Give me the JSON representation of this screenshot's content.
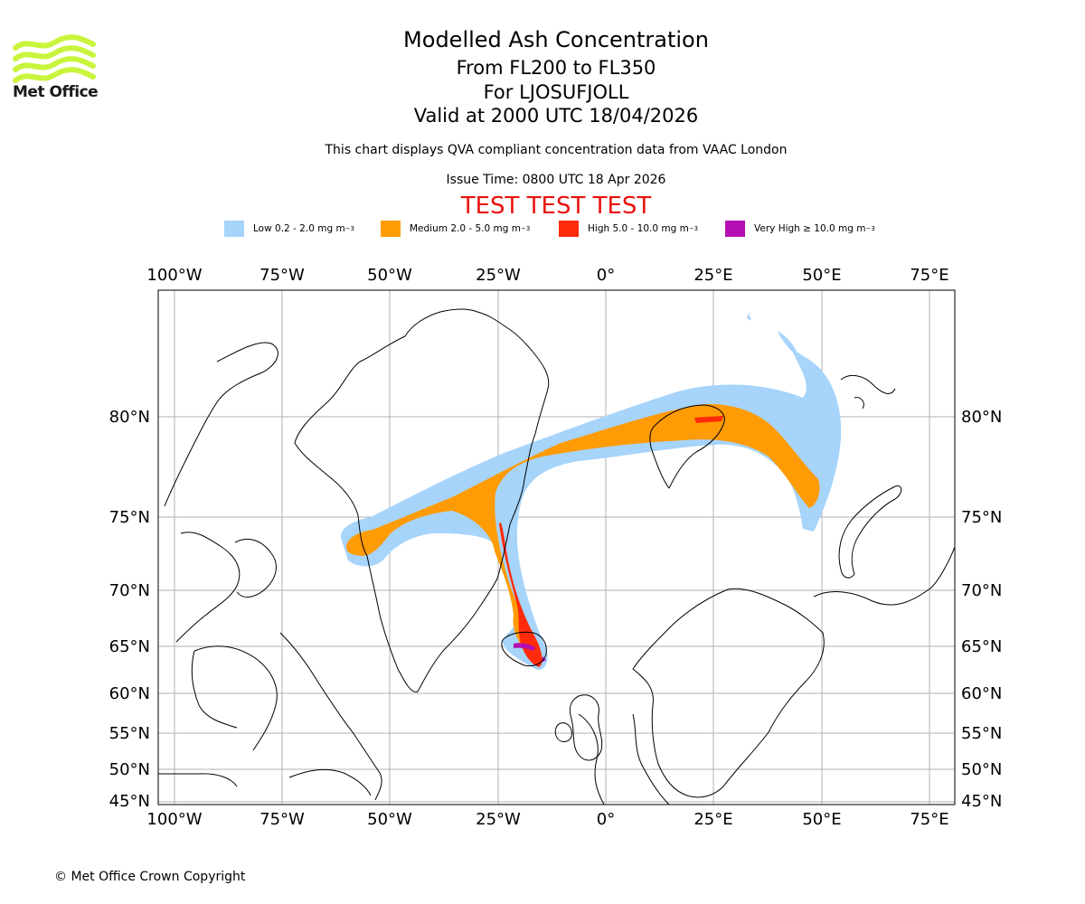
{
  "header": {
    "title": "Modelled Ash Concentration",
    "flight_levels": "From FL200 to FL350",
    "source": "For LJOSUFJOLL",
    "valid": "Valid at 2000 UTC 18/04/2026",
    "description": "This chart displays QVA compliant concentration data from VAAC London",
    "issue_time": "Issue Time: 0800 UTC 18 Apr 2026",
    "test_banner": "TEST TEST TEST"
  },
  "logo": {
    "text": "Met Office",
    "color": "#c8f53c"
  },
  "legend": [
    {
      "label": "Low 0.2 - 2.0 mg m",
      "exp": "−3",
      "color": "#a6d4fb"
    },
    {
      "label": "Medium 2.0 - 5.0 mg m",
      "exp": "−3",
      "color": "#ff9b05"
    },
    {
      "label": "High 5.0 - 10.0 mg m",
      "exp": "−3",
      "color": "#ff2b0a"
    },
    {
      "label": "Very High  ≥  10.0 mg m",
      "exp": "−3",
      "color": "#b30fb3"
    }
  ],
  "map": {
    "lon_labels": [
      "100°W",
      "75°W",
      "50°W",
      "25°W",
      "0°",
      "25°E",
      "50°E",
      "75°E"
    ],
    "lat_labels": [
      "80°N",
      "75°N",
      "70°N",
      "65°N",
      "60°N",
      "55°N",
      "50°N",
      "45°N"
    ],
    "gridline_color": "#b0b0b0"
  },
  "footer": {
    "copyright": "© Met Office Crown Copyright"
  }
}
